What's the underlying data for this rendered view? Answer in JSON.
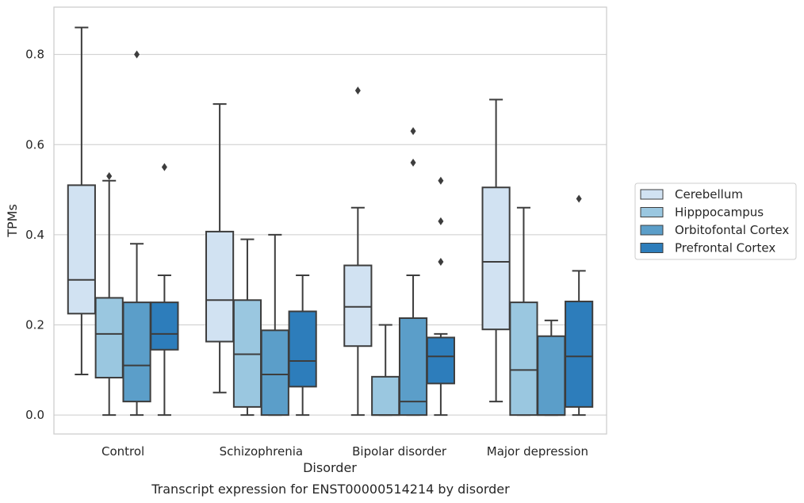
{
  "caption": "Transcript expression for ENST00000514214 by disorder",
  "chart_data": {
    "type": "box",
    "xlabel": "Disorder",
    "ylabel": "TPMs",
    "ylim": [
      -0.042,
      0.905
    ],
    "yticks": [
      0.0,
      0.2,
      0.4,
      0.6,
      0.8
    ],
    "ytick_labels": [
      "0.0",
      "0.2",
      "0.4",
      "0.6",
      "0.8"
    ],
    "grid": "horizontal",
    "legend_position": "right",
    "categories": [
      "Control",
      "Schizophrenia",
      "Bipolar disorder",
      "Major depression"
    ],
    "series": [
      {
        "name": "Cerebellum",
        "color": "#d1e2f2",
        "boxes": [
          {
            "whislo": 0.09,
            "q1": 0.225,
            "med": 0.3,
            "q3": 0.51,
            "whishi": 0.86,
            "fliers": []
          },
          {
            "whislo": 0.05,
            "q1": 0.163,
            "med": 0.255,
            "q3": 0.407,
            "whishi": 0.69,
            "fliers": []
          },
          {
            "whislo": 0.0,
            "q1": 0.153,
            "med": 0.24,
            "q3": 0.332,
            "whishi": 0.46,
            "fliers": [
              0.72
            ]
          },
          {
            "whislo": 0.03,
            "q1": 0.19,
            "med": 0.34,
            "q3": 0.505,
            "whishi": 0.7,
            "fliers": []
          }
        ]
      },
      {
        "name": "Hipppocampus",
        "color": "#9ac7e0",
        "boxes": [
          {
            "whislo": 0.0,
            "q1": 0.083,
            "med": 0.18,
            "q3": 0.26,
            "whishi": 0.52,
            "fliers": [
              0.53
            ]
          },
          {
            "whislo": 0.0,
            "q1": 0.018,
            "med": 0.135,
            "q3": 0.255,
            "whishi": 0.39,
            "fliers": []
          },
          {
            "whislo": 0.0,
            "q1": 0.0,
            "med": 0.0,
            "q3": 0.085,
            "whishi": 0.2,
            "fliers": []
          },
          {
            "whislo": 0.0,
            "q1": 0.0,
            "med": 0.1,
            "q3": 0.25,
            "whishi": 0.46,
            "fliers": []
          }
        ]
      },
      {
        "name": "Orbitofontal Cortex",
        "color": "#5b9ec9",
        "boxes": [
          {
            "whislo": 0.0,
            "q1": 0.03,
            "med": 0.11,
            "q3": 0.25,
            "whishi": 0.38,
            "fliers": [
              0.8
            ]
          },
          {
            "whislo": 0.0,
            "q1": 0.0,
            "med": 0.09,
            "q3": 0.188,
            "whishi": 0.4,
            "fliers": []
          },
          {
            "whislo": 0.0,
            "q1": 0.0,
            "med": 0.03,
            "q3": 0.215,
            "whishi": 0.31,
            "fliers": [
              0.56,
              0.63
            ]
          },
          {
            "whislo": 0.0,
            "q1": 0.0,
            "med": 0.0,
            "q3": 0.175,
            "whishi": 0.21,
            "fliers": []
          }
        ]
      },
      {
        "name": "Prefrontal Cortex",
        "color": "#2d7dbb",
        "boxes": [
          {
            "whislo": 0.0,
            "q1": 0.145,
            "med": 0.18,
            "q3": 0.25,
            "whishi": 0.31,
            "fliers": [
              0.55
            ]
          },
          {
            "whislo": 0.0,
            "q1": 0.063,
            "med": 0.12,
            "q3": 0.23,
            "whishi": 0.31,
            "fliers": []
          },
          {
            "whislo": 0.0,
            "q1": 0.07,
            "med": 0.13,
            "q3": 0.172,
            "whishi": 0.18,
            "fliers": [
              0.34,
              0.43,
              0.52
            ]
          },
          {
            "whislo": 0.0,
            "q1": 0.018,
            "med": 0.13,
            "q3": 0.252,
            "whishi": 0.32,
            "fliers": [
              0.48
            ]
          }
        ]
      }
    ]
  }
}
